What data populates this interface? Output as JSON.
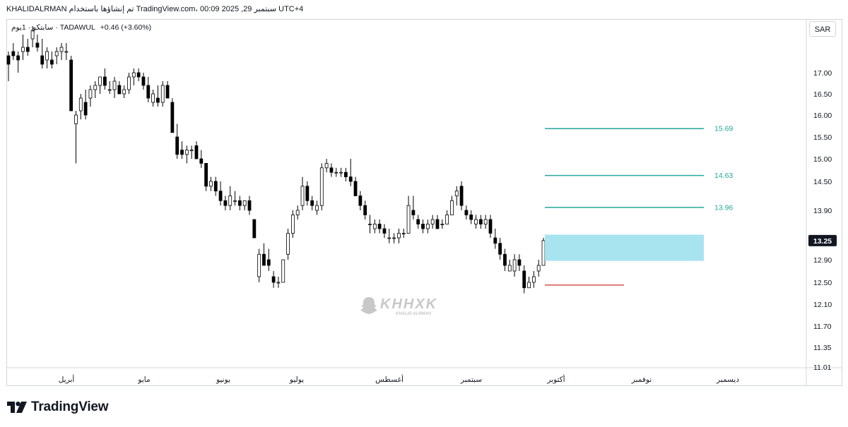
{
  "header": {
    "published_by": "KHALIDALRMAN تم إنشاؤها باستخدام TradingView.com، 00:09 2025 ,29 سبتمبر UTC+4"
  },
  "legend": {
    "symbol": "سابتكو · 1يوم · TADAWUL",
    "change": "+0.46 (+3.60%)"
  },
  "currency_button": "SAR",
  "footer": {
    "brand": "TradingView"
  },
  "watermark": {
    "main": "KHHXK",
    "sub": "KHALID ALRMAN"
  },
  "colors": {
    "up_body": "#ffffff",
    "down_body": "#000000",
    "candle_border": "#000000",
    "target_line": "#26a69a",
    "target_label": "#26a69a",
    "zone_fill": "#a8e3f0",
    "stop_line": "#d32f2f",
    "grid_text": "#131722"
  },
  "chart_data": {
    "type": "candlestick",
    "title": "",
    "x_labels": [
      "أبريل",
      "مايو",
      "يونيو",
      "يوليو",
      "أغسطس",
      "سبتمبر",
      "أكتوبر",
      "نوفمبر",
      "ديسمبر"
    ],
    "y_ticks": [
      "17.00",
      "16.50",
      "16.00",
      "15.50",
      "15.00",
      "14.50",
      "13.90",
      "13.30",
      "12.90",
      "12.50",
      "12.10",
      "11.70",
      "11.35",
      "11.01"
    ],
    "last_price_label": "13.25",
    "ylim": [
      11.0,
      17.6
    ],
    "target_levels": [
      {
        "label": "15.69",
        "value": 15.69
      },
      {
        "label": "14.63",
        "value": 14.63
      },
      {
        "label": "13.96",
        "value": 13.96
      }
    ],
    "entry_zone": {
      "low": 12.88,
      "high": 13.37
    },
    "stop_level": 12.45,
    "candles": [
      [
        0,
        17.4,
        17.5,
        16.8,
        17.2
      ],
      [
        1,
        17.5,
        17.7,
        17.3,
        17.4
      ],
      [
        2,
        17.4,
        17.5,
        17.0,
        17.3
      ],
      [
        3,
        17.5,
        17.9,
        17.3,
        17.6
      ],
      [
        4,
        17.6,
        17.8,
        17.4,
        17.5
      ],
      [
        5,
        17.8,
        18.1,
        17.6,
        18.0
      ],
      [
        6,
        17.7,
        17.9,
        17.5,
        17.6
      ],
      [
        7,
        17.4,
        17.8,
        17.1,
        17.2
      ],
      [
        8,
        17.3,
        17.6,
        17.1,
        17.5
      ],
      [
        9,
        17.3,
        17.5,
        17.1,
        17.2
      ],
      [
        10,
        17.4,
        17.6,
        17.2,
        17.5
      ],
      [
        11,
        17.5,
        17.7,
        17.3,
        17.6
      ],
      [
        12,
        17.5,
        17.7,
        17.3,
        17.5
      ],
      [
        13,
        17.3,
        17.4,
        16.1,
        16.1
      ],
      [
        14,
        15.8,
        16.1,
        14.9,
        16.0
      ],
      [
        15,
        16.1,
        16.5,
        15.9,
        16.4
      ],
      [
        16,
        16.3,
        16.6,
        15.9,
        16.0
      ],
      [
        17,
        16.4,
        16.7,
        16.2,
        16.6
      ],
      [
        18,
        16.6,
        16.8,
        16.4,
        16.7
      ],
      [
        19,
        16.7,
        16.9,
        16.5,
        16.9
      ],
      [
        20,
        16.9,
        17.1,
        16.6,
        16.7
      ],
      [
        21,
        16.6,
        16.8,
        16.5,
        16.6
      ],
      [
        22,
        16.6,
        16.9,
        16.4,
        16.8
      ],
      [
        23,
        16.7,
        16.8,
        16.5,
        16.5
      ],
      [
        24,
        16.5,
        16.7,
        16.4,
        16.6
      ],
      [
        25,
        16.6,
        17.0,
        16.5,
        16.9
      ],
      [
        26,
        16.9,
        17.1,
        16.7,
        17.0
      ],
      [
        27,
        17.0,
        17.1,
        16.8,
        16.9
      ],
      [
        28,
        16.9,
        17.0,
        16.6,
        16.7
      ],
      [
        29,
        16.7,
        16.9,
        16.3,
        16.4
      ],
      [
        30,
        16.3,
        16.6,
        16.2,
        16.5
      ],
      [
        31,
        16.4,
        16.7,
        16.2,
        16.3
      ],
      [
        32,
        16.3,
        16.8,
        16.2,
        16.7
      ],
      [
        33,
        16.7,
        16.8,
        16.4,
        16.4
      ],
      [
        34,
        16.3,
        16.4,
        15.6,
        15.6
      ],
      [
        35,
        15.5,
        15.8,
        15.0,
        15.1
      ],
      [
        36,
        15.2,
        15.4,
        15.0,
        15.1
      ],
      [
        37,
        15.1,
        15.3,
        14.9,
        15.2
      ],
      [
        38,
        15.2,
        15.3,
        15.0,
        15.2
      ],
      [
        39,
        15.3,
        15.4,
        15.0,
        15.0
      ],
      [
        40,
        15.0,
        15.2,
        14.8,
        14.9
      ],
      [
        41,
        14.9,
        14.9,
        14.3,
        14.4
      ],
      [
        42,
        14.4,
        14.6,
        14.3,
        14.5
      ],
      [
        43,
        14.5,
        14.6,
        14.2,
        14.3
      ],
      [
        44,
        14.3,
        14.5,
        14.0,
        14.1
      ],
      [
        45,
        14.1,
        14.2,
        13.9,
        14.0
      ],
      [
        46,
        14.0,
        14.4,
        13.9,
        14.2
      ],
      [
        47,
        14.1,
        14.3,
        14.0,
        14.1
      ],
      [
        48,
        14.1,
        14.2,
        13.9,
        14.0
      ],
      [
        49,
        14.0,
        14.1,
        13.9,
        14.1
      ],
      [
        50,
        14.1,
        14.2,
        13.8,
        13.9
      ],
      [
        51,
        13.7,
        13.7,
        13.3,
        13.3
      ],
      [
        52,
        12.6,
        13.1,
        12.5,
        13.0
      ],
      [
        53,
        13.0,
        13.2,
        12.8,
        12.8
      ],
      [
        54,
        12.9,
        13.1,
        12.7,
        12.8
      ],
      [
        55,
        12.6,
        12.7,
        12.4,
        12.5
      ],
      [
        56,
        12.5,
        12.6,
        12.4,
        12.5
      ],
      [
        57,
        12.5,
        12.9,
        12.5,
        12.9
      ],
      [
        58,
        13.0,
        13.5,
        12.9,
        13.4
      ],
      [
        59,
        13.4,
        13.9,
        13.3,
        13.8
      ],
      [
        60,
        13.8,
        14.0,
        13.7,
        13.9
      ],
      [
        61,
        14.0,
        14.6,
        13.9,
        14.4
      ],
      [
        62,
        14.4,
        14.5,
        14.0,
        14.1
      ],
      [
        63,
        14.1,
        14.2,
        13.9,
        14.0
      ],
      [
        64,
        13.9,
        14.1,
        13.8,
        14.0
      ],
      [
        65,
        14.0,
        14.9,
        13.9,
        14.8
      ],
      [
        66,
        14.8,
        15.0,
        14.7,
        14.9
      ],
      [
        67,
        14.8,
        14.9,
        14.6,
        14.7
      ],
      [
        68,
        14.7,
        14.8,
        14.6,
        14.7
      ],
      [
        69,
        14.7,
        14.8,
        14.6,
        14.7
      ],
      [
        70,
        14.7,
        14.8,
        14.5,
        14.6
      ],
      [
        71,
        14.6,
        15.0,
        14.4,
        14.5
      ],
      [
        72,
        14.5,
        14.6,
        14.2,
        14.2
      ],
      [
        73,
        14.2,
        14.3,
        13.9,
        14.0
      ],
      [
        74,
        14.0,
        14.1,
        13.7,
        13.8
      ],
      [
        75,
        13.6,
        13.8,
        13.4,
        13.6
      ],
      [
        76,
        13.5,
        13.7,
        13.4,
        13.6
      ],
      [
        77,
        13.6,
        13.7,
        13.4,
        13.5
      ],
      [
        78,
        13.5,
        13.6,
        13.3,
        13.4
      ],
      [
        79,
        13.3,
        13.5,
        13.2,
        13.3
      ],
      [
        80,
        13.3,
        13.4,
        13.2,
        13.3
      ],
      [
        81,
        13.3,
        13.5,
        13.2,
        13.4
      ],
      [
        82,
        13.4,
        13.5,
        13.3,
        13.4
      ],
      [
        83,
        13.4,
        14.2,
        13.4,
        14.0
      ],
      [
        84,
        13.9,
        14.2,
        13.7,
        13.8
      ],
      [
        85,
        13.7,
        13.8,
        13.5,
        13.6
      ],
      [
        86,
        13.6,
        13.7,
        13.4,
        13.5
      ],
      [
        87,
        13.5,
        13.7,
        13.4,
        13.6
      ],
      [
        88,
        13.6,
        13.8,
        13.5,
        13.7
      ],
      [
        89,
        13.7,
        13.8,
        13.5,
        13.5
      ],
      [
        90,
        13.6,
        13.7,
        13.5,
        13.6
      ],
      [
        91,
        13.6,
        13.9,
        13.6,
        13.8
      ],
      [
        92,
        13.8,
        14.2,
        13.8,
        14.1
      ],
      [
        93,
        14.2,
        14.4,
        14.0,
        14.3
      ],
      [
        94,
        14.4,
        14.5,
        13.9,
        14.0
      ],
      [
        95,
        13.9,
        14.0,
        13.7,
        13.8
      ],
      [
        96,
        13.8,
        13.9,
        13.6,
        13.7
      ],
      [
        97,
        13.6,
        13.8,
        13.5,
        13.7
      ],
      [
        98,
        13.7,
        13.8,
        13.5,
        13.6
      ],
      [
        99,
        13.6,
        13.8,
        13.5,
        13.7
      ],
      [
        100,
        13.7,
        13.8,
        13.3,
        13.4
      ],
      [
        101,
        13.3,
        13.5,
        13.1,
        13.2
      ],
      [
        102,
        13.2,
        13.3,
        12.9,
        13.0
      ],
      [
        103,
        13.0,
        13.1,
        12.7,
        12.8
      ],
      [
        104,
        12.7,
        12.9,
        12.7,
        12.8
      ],
      [
        105,
        12.7,
        13.0,
        12.6,
        12.9
      ],
      [
        106,
        12.9,
        13.0,
        12.7,
        12.8
      ],
      [
        107,
        12.7,
        12.8,
        12.3,
        12.4
      ],
      [
        108,
        12.4,
        12.6,
        12.4,
        12.5
      ],
      [
        109,
        12.5,
        12.7,
        12.4,
        12.6
      ],
      [
        110,
        12.7,
        12.9,
        12.6,
        12.8
      ],
      [
        111,
        12.8,
        13.3,
        12.8,
        13.25
      ]
    ]
  }
}
